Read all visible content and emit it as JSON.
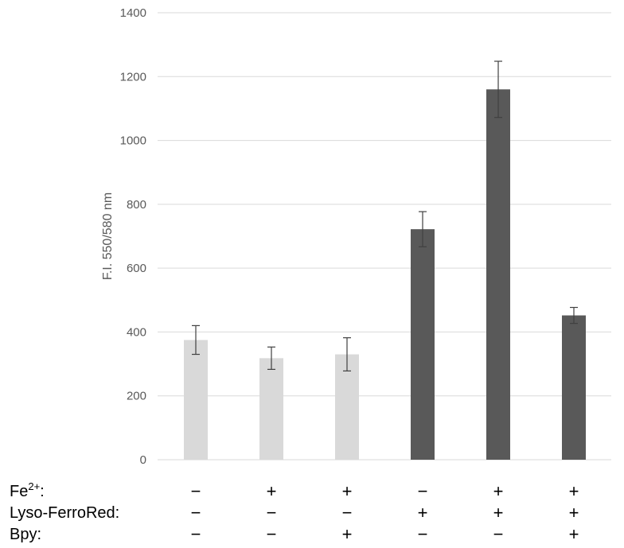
{
  "chart_data": {
    "type": "bar",
    "title": "",
    "xlabel": "",
    "ylabel": "F.I. 550/580 nm",
    "ylim": [
      0,
      1400
    ],
    "yticks": [
      0,
      200,
      400,
      600,
      800,
      1000,
      1200,
      1400
    ],
    "grid": true,
    "legend": "none",
    "bars": [
      {
        "value": 375,
        "error": 45,
        "color": "#d9d9d9"
      },
      {
        "value": 318,
        "error": 35,
        "color": "#d9d9d9"
      },
      {
        "value": 330,
        "error": 52,
        "color": "#d9d9d9"
      },
      {
        "value": 722,
        "error": 55,
        "color": "#595959"
      },
      {
        "value": 1160,
        "error": 88,
        "color": "#595959"
      },
      {
        "value": 452,
        "error": 25,
        "color": "#595959"
      }
    ],
    "error_bar_color": "#404040",
    "grid_color": "#d9d9d9",
    "conditions": [
      {
        "label_base": "Fe",
        "label_sup": "2+",
        "label_tail": ":",
        "signs": [
          "−",
          "+",
          "+",
          "−",
          "+",
          "+"
        ]
      },
      {
        "label_base": "Lyso-FerroRed:",
        "label_sup": "",
        "label_tail": "",
        "signs": [
          "−",
          "−",
          "−",
          "+",
          "+",
          "+"
        ]
      },
      {
        "label_base": "Bpy:",
        "label_sup": "",
        "label_tail": "",
        "signs": [
          "−",
          "−",
          "+",
          "−",
          "−",
          "+"
        ]
      }
    ]
  }
}
